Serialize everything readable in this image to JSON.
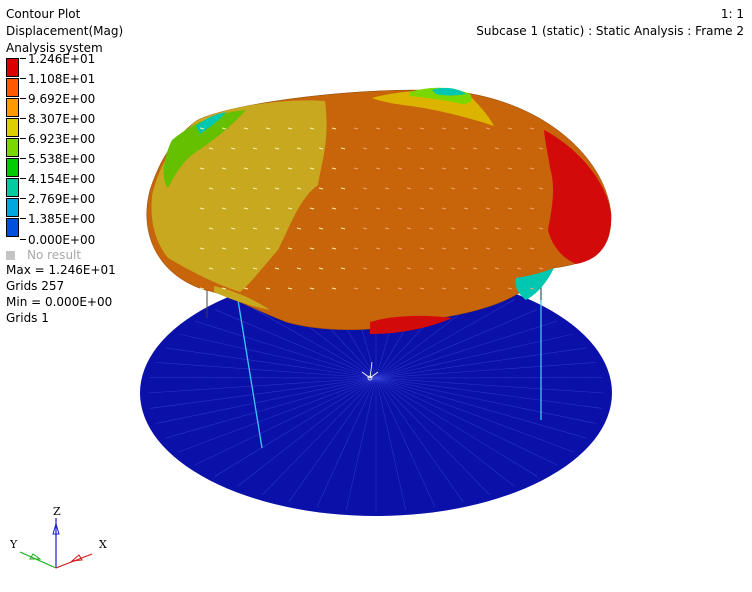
{
  "header": {
    "lines": [
      "Contour Plot",
      "Displacement(Mag)",
      "Analysis system"
    ],
    "page_index": "1: 1",
    "subcase": "Subcase 1 (static) : Static Analysis : Frame 2"
  },
  "legend": {
    "levels": [
      {
        "label": "1.246E+01",
        "color": "#dc0000"
      },
      {
        "label": "1.108E+01",
        "color": "#ff5a00"
      },
      {
        "label": "9.692E+00",
        "color": "#ff9a00"
      },
      {
        "label": "8.307E+00",
        "color": "#ddd000"
      },
      {
        "label": "6.923E+00",
        "color": "#7ad800"
      },
      {
        "label": "5.538E+00",
        "color": "#00cc00"
      },
      {
        "label": "4.154E+00",
        "color": "#00cca0"
      },
      {
        "label": "2.769E+00",
        "color": "#00a8e0"
      },
      {
        "label": "1.385E+00",
        "color": "#0050e0"
      },
      {
        "label": "0.000E+00",
        "color": "#00009a"
      }
    ],
    "no_result": "No result"
  },
  "stats": {
    "max": "Max = 1.246E+01",
    "max_grids": "Grids 257",
    "min": "Min = 0.000E+00",
    "min_grids": "Grids 1"
  },
  "triad": {
    "x": "X",
    "y": "Y",
    "z": "Z"
  },
  "colors": {
    "base_disk": "#0a10a8",
    "shell_orange": "#c8640a",
    "shell_yellow": "#c8a81e",
    "shell_red": "#d20a0a"
  }
}
